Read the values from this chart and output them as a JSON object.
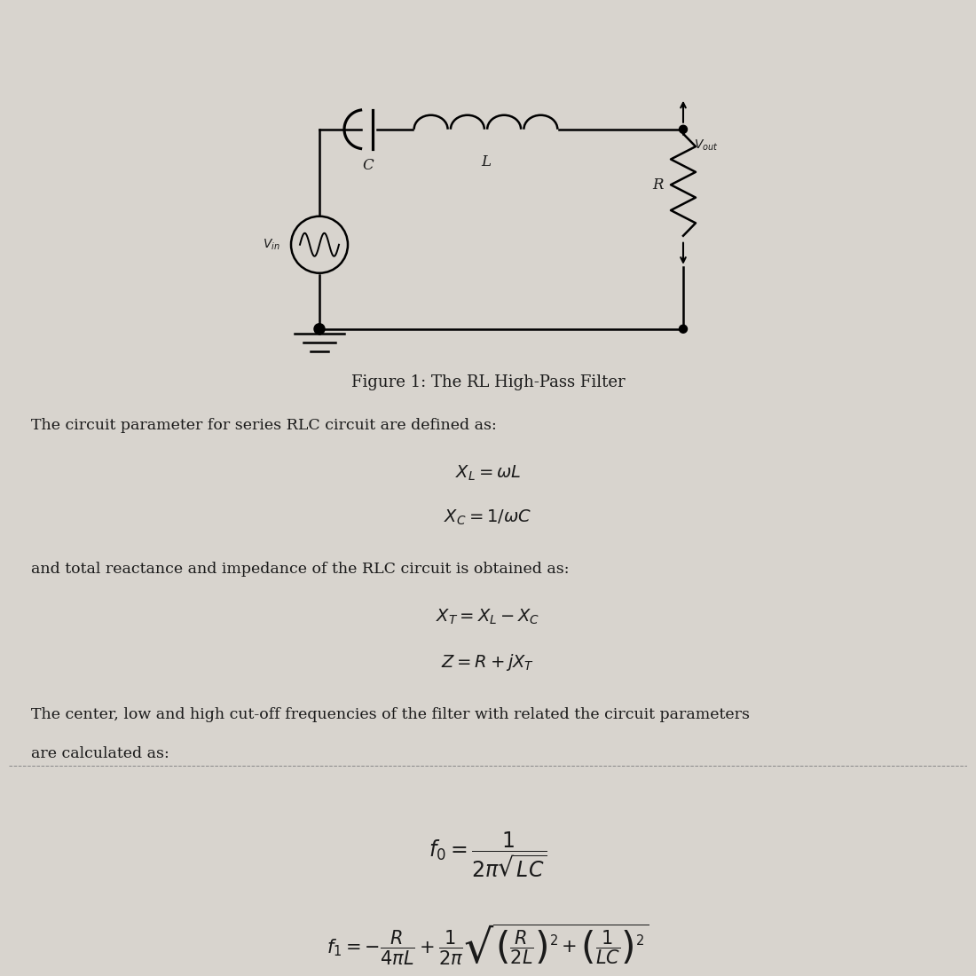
{
  "background_color": "#d8d4ce",
  "figure_caption": "Figure 1: The RL High-Pass Filter",
  "caption_fontsize": 13,
  "body_fontsize": 12.5,
  "math_fontsize": 14,
  "text_color": "#1a1a1a",
  "line1": "The circuit parameter for series RLC circuit are defined as:",
  "eq1": "$X_L=\\omega L$",
  "eq2": "$X_C=1/\\omega C$",
  "line2": "and total reactance and impedance of the RLC circuit is obtained as:",
  "eq3": "$X_T = X_L - X_C$",
  "eq4": "$Z = R + jX_T$",
  "line3": "The center, low and high cut-off frequencies of the filter with related the circuit parameters",
  "line4": "are calculated as:",
  "eq5": "$f_0=\\dfrac{1}{2\\pi\\sqrt{LC}}$",
  "eq6": "$f_1=-\\dfrac{R}{4\\pi L}+\\dfrac{1}{2\\pi}\\sqrt{\\left(\\dfrac{R}{2L}\\right)^2+\\left(\\dfrac{1}{LC}\\right)^2}$"
}
